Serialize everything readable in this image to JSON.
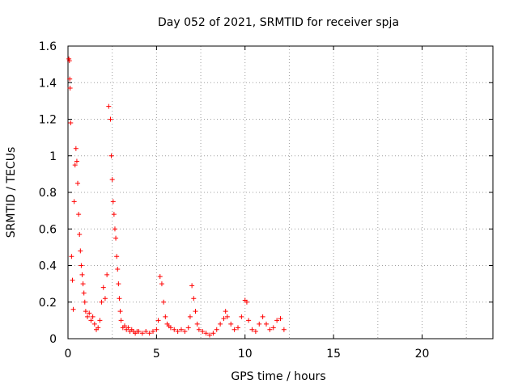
{
  "chart_data": {
    "type": "scatter",
    "title": "Day 052 of 2021, SRMTID for receiver spja",
    "xlabel": "GPS time / hours",
    "ylabel": "SRMTID / TECUs",
    "xlim": [
      0,
      24
    ],
    "ylim": [
      0,
      1.6
    ],
    "xticks": [
      0,
      5,
      10,
      15,
      20
    ],
    "yticks": [
      0,
      0.2,
      0.4,
      0.6,
      0.8,
      1,
      1.2,
      1.4,
      1.6
    ],
    "xtick_labels": [
      "0",
      "5",
      "10",
      "15",
      "20"
    ],
    "ytick_labels": [
      "0",
      "0.2",
      "0.4",
      "0.6",
      "0.8",
      "1",
      "1.2",
      "1.4",
      "1.6"
    ],
    "grid": true,
    "marker": "+",
    "color": "#ff0000",
    "series": [
      {
        "name": "SRMTID",
        "x": [
          0.05,
          0.08,
          0.1,
          0.12,
          0.15,
          0.2,
          0.25,
          0.3,
          0.35,
          0.4,
          0.45,
          0.5,
          0.55,
          0.6,
          0.65,
          0.7,
          0.75,
          0.8,
          0.85,
          0.9,
          0.95,
          1.0,
          1.1,
          1.2,
          1.3,
          1.4,
          1.5,
          1.6,
          1.7,
          1.8,
          1.9,
          2.0,
          2.1,
          2.2,
          2.3,
          2.4,
          2.45,
          2.5,
          2.55,
          2.6,
          2.65,
          2.7,
          2.75,
          2.8,
          2.85,
          2.9,
          2.95,
          3.0,
          3.1,
          3.2,
          3.3,
          3.4,
          3.5,
          3.6,
          3.7,
          3.8,
          3.9,
          4.0,
          4.2,
          4.4,
          4.6,
          4.8,
          5.0,
          5.1,
          5.2,
          5.3,
          5.4,
          5.5,
          5.6,
          5.7,
          5.8,
          6.0,
          6.2,
          6.4,
          6.6,
          6.8,
          6.9,
          7.0,
          7.1,
          7.2,
          7.3,
          7.4,
          7.6,
          7.8,
          8.0,
          8.2,
          8.4,
          8.6,
          8.8,
          8.9,
          9.0,
          9.2,
          9.4,
          9.6,
          9.8,
          10.0,
          10.1,
          10.2,
          10.4,
          10.6,
          10.8,
          11.0,
          11.2,
          11.4,
          11.6,
          11.8,
          12.0,
          12.2
        ],
        "y": [
          1.53,
          1.52,
          1.42,
          1.37,
          1.18,
          0.45,
          0.32,
          0.16,
          0.75,
          0.95,
          1.04,
          0.97,
          0.85,
          0.68,
          0.57,
          0.48,
          0.4,
          0.35,
          0.3,
          0.25,
          0.2,
          0.15,
          0.12,
          0.14,
          0.1,
          0.12,
          0.08,
          0.05,
          0.06,
          0.1,
          0.2,
          0.28,
          0.22,
          0.35,
          1.27,
          1.2,
          1.0,
          0.87,
          0.75,
          0.68,
          0.6,
          0.55,
          0.45,
          0.38,
          0.3,
          0.22,
          0.15,
          0.1,
          0.06,
          0.07,
          0.05,
          0.06,
          0.04,
          0.05,
          0.04,
          0.03,
          0.04,
          0.04,
          0.03,
          0.04,
          0.03,
          0.04,
          0.05,
          0.1,
          0.34,
          0.3,
          0.2,
          0.12,
          0.08,
          0.07,
          0.06,
          0.05,
          0.04,
          0.05,
          0.04,
          0.06,
          0.12,
          0.29,
          0.22,
          0.15,
          0.08,
          0.05,
          0.04,
          0.03,
          0.02,
          0.03,
          0.05,
          0.08,
          0.11,
          0.15,
          0.12,
          0.08,
          0.05,
          0.06,
          0.12,
          0.21,
          0.2,
          0.1,
          0.05,
          0.04,
          0.08,
          0.12,
          0.08,
          0.05,
          0.06,
          0.1,
          0.11,
          0.05
        ]
      }
    ]
  }
}
